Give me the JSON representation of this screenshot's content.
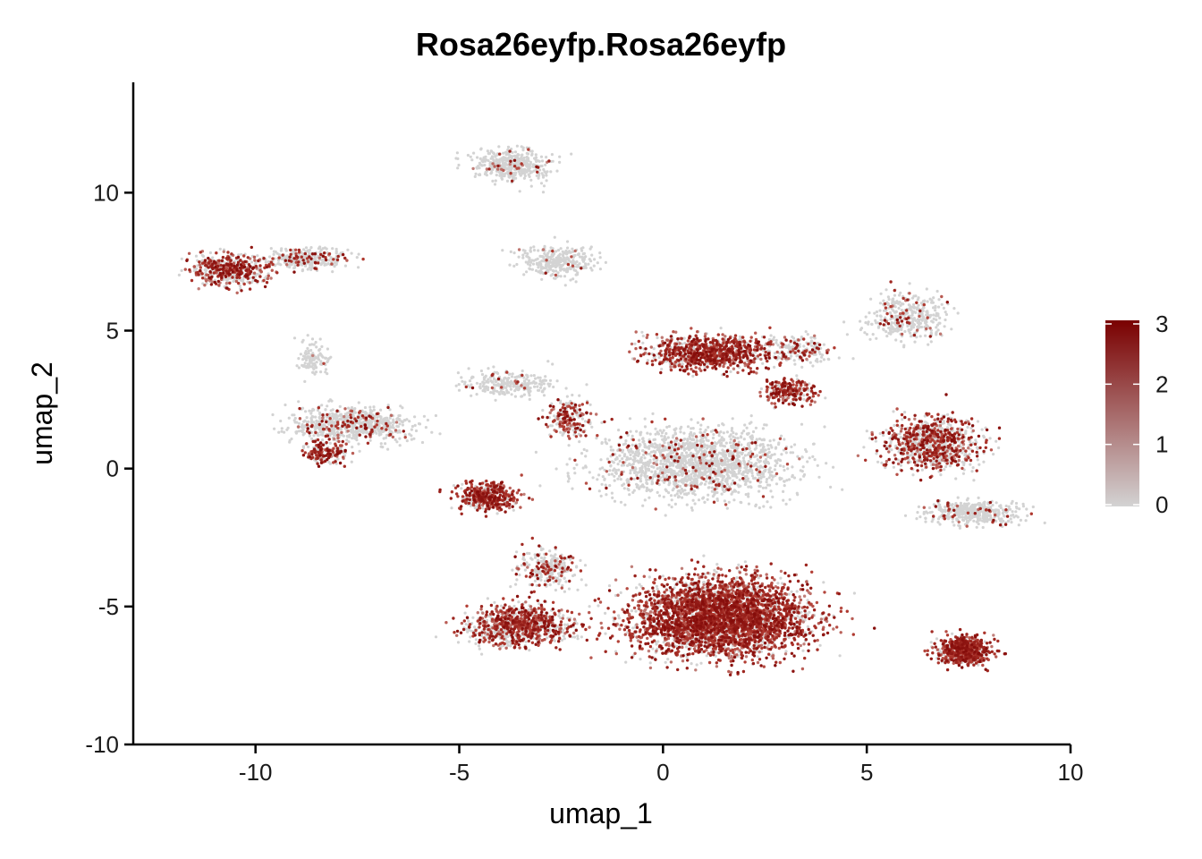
{
  "chart_data": {
    "type": "scatter",
    "title": "Rosa26eyfp.Rosa26eyfp",
    "xlabel": "umap_1",
    "ylabel": "umap_2",
    "xlim": [
      -13,
      10
    ],
    "ylim": [
      -10,
      14
    ],
    "xticks": [
      -10,
      -5,
      0,
      5,
      10
    ],
    "xtick_labels": [
      "-10",
      "-5",
      "0",
      "5",
      "10"
    ],
    "yticks": [
      -10,
      -5,
      0,
      5,
      10
    ],
    "ytick_labels": [
      "-10",
      "-5",
      "0",
      "5",
      "10"
    ],
    "grid": false,
    "color_scale": {
      "low_color": "#d3d3d3",
      "high_color": "#7a0000",
      "min": 0,
      "max": 3,
      "ticks": [
        0,
        1,
        2,
        3
      ],
      "tick_labels": [
        "0",
        "1",
        "2",
        "3"
      ],
      "legend_position": "right"
    },
    "clusters": [
      {
        "cx": -10.6,
        "cy": 7.2,
        "sx": 0.9,
        "sy": 0.55,
        "n": 520,
        "expr": 0.55
      },
      {
        "cx": -8.8,
        "cy": 7.6,
        "sx": 0.9,
        "sy": 0.35,
        "n": 300,
        "expr": 0.15
      },
      {
        "cx": -7.6,
        "cy": 1.6,
        "sx": 1.4,
        "sy": 0.6,
        "n": 700,
        "expr": 0.15
      },
      {
        "cx": -8.3,
        "cy": 0.6,
        "sx": 0.5,
        "sy": 0.35,
        "n": 180,
        "expr": 0.6
      },
      {
        "cx": -8.6,
        "cy": 4.0,
        "sx": 0.35,
        "sy": 0.6,
        "n": 120,
        "expr": 0.05
      },
      {
        "cx": -3.7,
        "cy": 11.0,
        "sx": 0.9,
        "sy": 0.55,
        "n": 420,
        "expr": 0.05
      },
      {
        "cx": -2.6,
        "cy": 7.5,
        "sx": 0.9,
        "sy": 0.5,
        "n": 320,
        "expr": 0.05
      },
      {
        "cx": -3.8,
        "cy": 3.1,
        "sx": 1.0,
        "sy": 0.45,
        "n": 260,
        "expr": 0.05
      },
      {
        "cx": -2.3,
        "cy": 1.8,
        "sx": 0.5,
        "sy": 0.55,
        "n": 200,
        "expr": 0.55
      },
      {
        "cx": -4.3,
        "cy": -1.0,
        "sx": 0.7,
        "sy": 0.45,
        "n": 420,
        "expr": 0.75
      },
      {
        "cx": 1.1,
        "cy": 4.2,
        "sx": 1.4,
        "sy": 0.6,
        "n": 900,
        "expr": 0.7
      },
      {
        "cx": 3.1,
        "cy": 2.8,
        "sx": 0.55,
        "sy": 0.4,
        "n": 230,
        "expr": 0.7
      },
      {
        "cx": 3.2,
        "cy": 4.3,
        "sx": 0.9,
        "sy": 0.5,
        "n": 200,
        "expr": 0.3
      },
      {
        "cx": 0.8,
        "cy": 0.2,
        "sx": 2.2,
        "sy": 1.2,
        "n": 1700,
        "expr": 0.08
      },
      {
        "cx": 6.0,
        "cy": 5.5,
        "sx": 0.9,
        "sy": 0.8,
        "n": 380,
        "expr": 0.12
      },
      {
        "cx": 6.6,
        "cy": 0.9,
        "sx": 1.1,
        "sy": 0.9,
        "n": 900,
        "expr": 0.5
      },
      {
        "cx": 7.6,
        "cy": -1.6,
        "sx": 1.0,
        "sy": 0.4,
        "n": 420,
        "expr": 0.08
      },
      {
        "cx": 1.4,
        "cy": -5.4,
        "sx": 2.0,
        "sy": 1.3,
        "n": 3600,
        "expr": 0.75
      },
      {
        "cx": -3.5,
        "cy": -5.7,
        "sx": 1.2,
        "sy": 0.7,
        "n": 900,
        "expr": 0.6
      },
      {
        "cx": -2.8,
        "cy": -3.6,
        "sx": 0.7,
        "sy": 0.7,
        "n": 250,
        "expr": 0.3
      },
      {
        "cx": 7.4,
        "cy": -6.6,
        "sx": 0.6,
        "sy": 0.5,
        "n": 650,
        "expr": 0.8
      }
    ]
  }
}
